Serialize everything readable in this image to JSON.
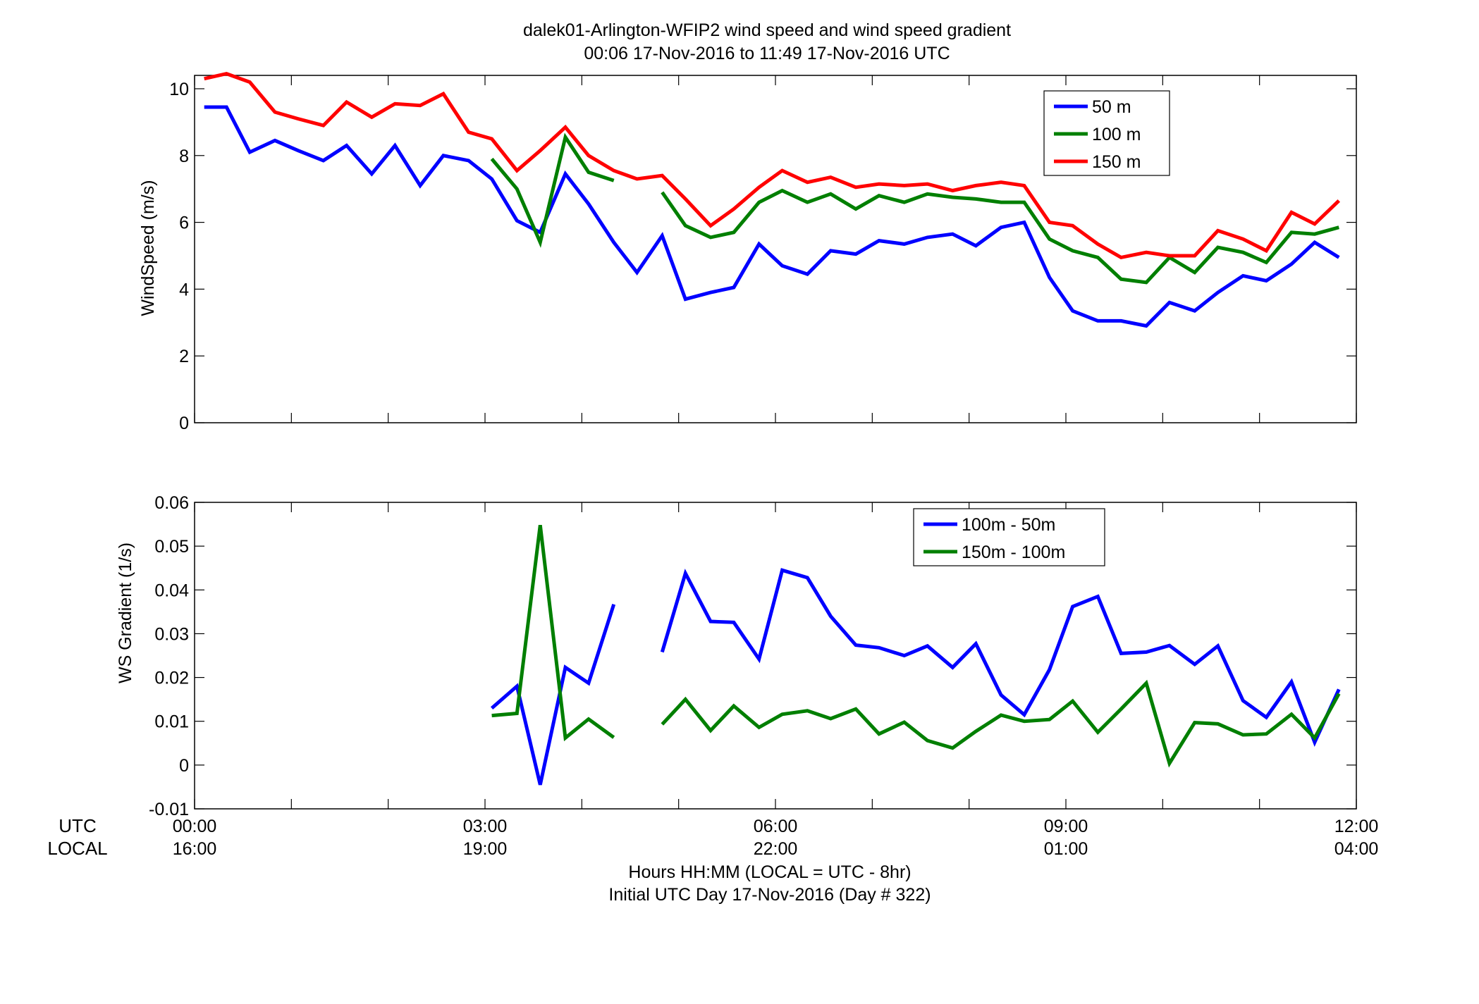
{
  "title_line1": "dalek01-Arlington-WFIP2  wind speed and wind speed gradient",
  "title_line2": "00:06 17-Nov-2016 to 11:49 17-Nov-2016  UTC",
  "row_label_utc": "UTC",
  "row_label_local": "LOCAL",
  "xlabel_line1": "Hours HH:MM  (LOCAL = UTC - 8hr)",
  "xlabel_line2": "Initial UTC Day 17-Nov-2016 (Day # 322)",
  "x_ticks": [
    {
      "hour": 0,
      "utc": "00:00",
      "local": "16:00"
    },
    {
      "hour": 3,
      "utc": "03:00",
      "local": "19:00"
    },
    {
      "hour": 6,
      "utc": "06:00",
      "local": "22:00"
    },
    {
      "hour": 9,
      "utc": "09:00",
      "local": "01:00"
    },
    {
      "hour": 12,
      "utc": "12:00",
      "local": "04:00"
    }
  ],
  "colors": {
    "blue": "#0000ff",
    "green": "#007f00",
    "red": "#ff0000"
  },
  "chart_data": [
    {
      "type": "line",
      "ylabel": "WindSpeed (m/s)",
      "ylim": [
        0,
        10.4
      ],
      "xlim": [
        0,
        12
      ],
      "y_ticks": [
        "0",
        "2",
        "4",
        "6",
        "8",
        "10"
      ],
      "grid": false,
      "legend_position": "top-right",
      "x_hours": [
        0.1,
        0.33,
        0.57,
        0.83,
        1.07,
        1.33,
        1.57,
        1.83,
        2.07,
        2.33,
        2.57,
        2.83,
        3.07,
        3.33,
        3.57,
        3.83,
        4.07,
        4.33,
        4.57,
        4.83,
        5.07,
        5.33,
        5.57,
        5.83,
        6.07,
        6.33,
        6.57,
        6.83,
        7.07,
        7.33,
        7.57,
        7.83,
        8.07,
        8.33,
        8.57,
        8.83,
        9.07,
        9.33,
        9.57,
        9.83,
        10.07,
        10.33,
        10.57,
        10.83,
        11.07,
        11.33,
        11.57,
        11.82
      ],
      "series": [
        {
          "name": "50 m",
          "color": "blue",
          "values": [
            9.45,
            9.45,
            8.1,
            8.45,
            8.15,
            7.85,
            8.3,
            7.45,
            8.3,
            7.1,
            8.0,
            7.85,
            7.3,
            6.05,
            5.7,
            7.45,
            6.55,
            5.4,
            4.5,
            5.6,
            3.7,
            3.9,
            4.05,
            5.35,
            4.7,
            4.45,
            5.15,
            5.05,
            5.45,
            5.35,
            5.55,
            5.65,
            5.3,
            5.85,
            6.0,
            4.35,
            3.35,
            3.05,
            3.05,
            2.9,
            3.6,
            3.35,
            3.9,
            4.4,
            4.25,
            4.75,
            5.4,
            4.95
          ]
        },
        {
          "name": "100 m",
          "color": "green",
          "values": [
            null,
            null,
            null,
            null,
            null,
            null,
            null,
            null,
            null,
            null,
            null,
            null,
            7.9,
            7.0,
            5.4,
            8.55,
            7.5,
            7.25,
            null,
            6.9,
            5.9,
            5.55,
            5.7,
            6.6,
            6.95,
            6.6,
            6.85,
            6.4,
            6.8,
            6.6,
            6.85,
            6.75,
            6.7,
            6.6,
            6.6,
            5.5,
            5.15,
            4.95,
            4.3,
            4.2,
            4.95,
            4.5,
            5.25,
            5.1,
            4.8,
            5.7,
            5.65,
            5.85
          ]
        },
        {
          "name": "150 m",
          "color": "red",
          "values": [
            10.3,
            10.45,
            10.2,
            9.3,
            9.1,
            8.9,
            9.6,
            9.15,
            9.55,
            9.5,
            9.85,
            8.7,
            8.5,
            7.55,
            8.15,
            8.85,
            8.0,
            7.55,
            7.3,
            7.4,
            6.7,
            5.9,
            6.4,
            7.05,
            7.55,
            7.2,
            7.35,
            7.05,
            7.15,
            7.1,
            7.15,
            6.95,
            7.1,
            7.2,
            7.1,
            6.0,
            5.9,
            5.35,
            4.95,
            5.1,
            5.0,
            5.0,
            5.75,
            5.5,
            5.15,
            6.3,
            5.95,
            6.65
          ]
        }
      ]
    },
    {
      "type": "line",
      "ylabel": "WS Gradient (1/s)",
      "ylim": [
        -0.01,
        0.06
      ],
      "xlim": [
        0,
        12
      ],
      "y_ticks": [
        "-0.01",
        "0",
        "0.01",
        "0.02",
        "0.03",
        "0.04",
        "0.05",
        "0.06"
      ],
      "grid": false,
      "legend_position": "top-right",
      "x_hours": [
        0.1,
        0.33,
        0.57,
        0.83,
        1.07,
        1.33,
        1.57,
        1.83,
        2.07,
        2.33,
        2.57,
        2.83,
        3.07,
        3.33,
        3.57,
        3.83,
        4.07,
        4.33,
        4.57,
        4.83,
        5.07,
        5.33,
        5.57,
        5.83,
        6.07,
        6.33,
        6.57,
        6.83,
        7.07,
        7.33,
        7.57,
        7.83,
        8.07,
        8.33,
        8.57,
        8.83,
        9.07,
        9.33,
        9.57,
        9.83,
        10.07,
        10.33,
        10.57,
        10.83,
        11.07,
        11.33,
        11.57,
        11.82
      ],
      "series": [
        {
          "name": "100m - 50m",
          "color": "blue",
          "values": [
            null,
            null,
            null,
            null,
            null,
            null,
            null,
            null,
            null,
            null,
            null,
            null,
            0.013,
            0.018,
            -0.0045,
            0.0223,
            0.0187,
            0.0367,
            null,
            0.0258,
            0.0438,
            0.0328,
            0.0326,
            0.0242,
            0.0445,
            0.0428,
            0.034,
            0.0274,
            0.0268,
            0.025,
            0.0272,
            0.0223,
            0.0277,
            0.016,
            0.0115,
            0.0218,
            0.0362,
            0.0385,
            0.0255,
            0.0258,
            0.0273,
            0.023,
            0.0272,
            0.0147,
            0.0109,
            0.019,
            0.0052,
            0.0173
          ]
        },
        {
          "name": "150m - 100m",
          "color": "green",
          "values": [
            null,
            null,
            null,
            null,
            null,
            null,
            null,
            null,
            null,
            null,
            null,
            null,
            0.0113,
            0.0118,
            0.0548,
            0.0062,
            0.0105,
            0.0063,
            null,
            0.0093,
            0.015,
            0.0079,
            0.0135,
            0.0086,
            0.0116,
            0.0124,
            0.0106,
            0.0128,
            0.0071,
            0.0098,
            0.0056,
            0.0039,
            0.0077,
            0.0114,
            0.01,
            0.0104,
            0.0146,
            0.0075,
            0.0128,
            0.0187,
            0.0004,
            0.0097,
            0.0094,
            0.0069,
            0.0071,
            0.0116,
            0.0062,
            0.0163
          ]
        }
      ]
    }
  ]
}
